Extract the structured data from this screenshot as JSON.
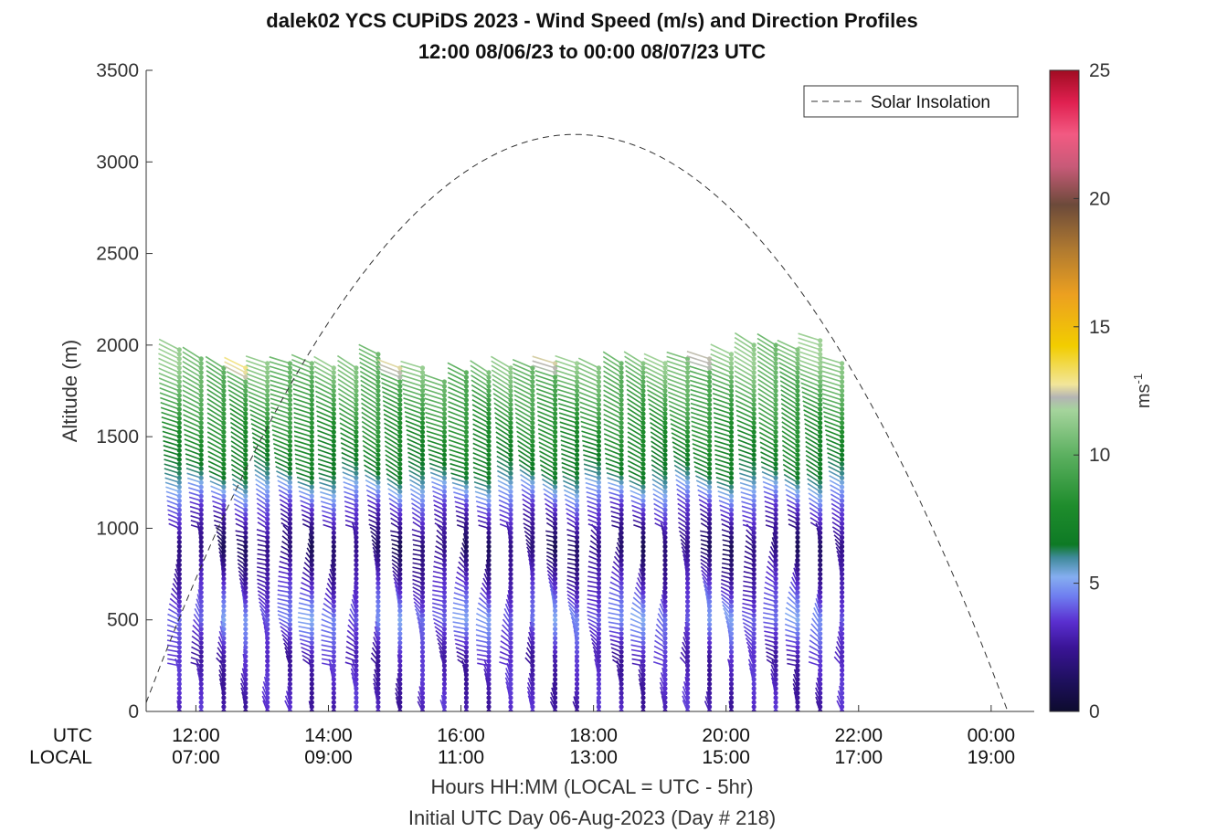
{
  "chart_data": {
    "type": "wind-barb-profile",
    "title": "dalek02 YCS CUPiDS 2023 - Wind Speed (m/s) and Direction Profiles",
    "subtitle": "12:00 08/06/23 to 00:00 08/07/23  UTC",
    "ylabel": "Altitude (m)",
    "xlabel": "Hours HH:MM  (LOCAL = UTC - 5hr)",
    "xlabel2": "Initial UTC Day 06-Aug-2023 (Day # 218)",
    "ylim": [
      0,
      3500
    ],
    "y_ticks": [
      "0",
      "500",
      "1000",
      "1500",
      "2000",
      "2500",
      "3000",
      "3500"
    ],
    "x_row_labels": {
      "utc": "UTC",
      "local": "LOCAL"
    },
    "x_ticks": [
      {
        "hour": 12,
        "utc": "12:00",
        "local": "07:00"
      },
      {
        "hour": 14,
        "utc": "14:00",
        "local": "09:00"
      },
      {
        "hour": 16,
        "utc": "16:00",
        "local": "11:00"
      },
      {
        "hour": 18,
        "utc": "18:00",
        "local": "13:00"
      },
      {
        "hour": 20,
        "utc": "20:00",
        "local": "15:00"
      },
      {
        "hour": 22,
        "utc": "22:00",
        "local": "17:00"
      },
      {
        "hour": 24,
        "utc": "00:00",
        "local": "19:00"
      }
    ],
    "xlim_hours": [
      11.25,
      24.65
    ],
    "legend": {
      "label": "Solar Insolation",
      "placement": "top-right",
      "style": "dashed black"
    },
    "solar_curve": {
      "sunrise_hour": 11.2,
      "sunset_hour": 24.25,
      "peak_altitude": 3150
    },
    "colorbar": {
      "label": "ms",
      "label_exponent": "-1",
      "range": [
        0,
        25
      ],
      "ticks": [
        "0",
        "5",
        "10",
        "15",
        "20",
        "25"
      ]
    },
    "profile_times_hours": [
      11.75,
      12.08,
      12.42,
      12.75,
      13.08,
      13.42,
      13.75,
      14.08,
      14.42,
      14.75,
      15.08,
      15.42,
      15.75,
      16.08,
      16.42,
      16.75,
      17.08,
      17.42,
      17.75,
      18.08,
      18.42,
      18.75,
      19.08,
      19.42,
      19.75,
      20.08,
      20.42,
      20.75,
      21.08,
      21.42,
      21.75
    ],
    "profile_top_m": [
      1975,
      1925,
      1875,
      1875,
      1900,
      1900,
      1900,
      1875,
      1875,
      1950,
      1875,
      1875,
      1800,
      1850,
      1850,
      1875,
      1875,
      1900,
      1900,
      1875,
      1900,
      1900,
      1900,
      1925,
      1925,
      1950,
      2000,
      2000,
      1975,
      2025,
      1900
    ],
    "altitude_step_m": 25,
    "speed_profile_samples": [
      {
        "alt_m": 0,
        "speed_ms": 3.0
      },
      {
        "alt_m": 300,
        "speed_ms": 3.0
      },
      {
        "alt_m": 500,
        "speed_ms": 4.5
      },
      {
        "alt_m": 700,
        "speed_ms": 3.0
      },
      {
        "alt_m": 900,
        "speed_ms": 1.5
      },
      {
        "alt_m": 1100,
        "speed_ms": 3.5
      },
      {
        "alt_m": 1300,
        "speed_ms": 6.5
      },
      {
        "alt_m": 1500,
        "speed_ms": 8.0
      },
      {
        "alt_m": 1700,
        "speed_ms": 9.5
      },
      {
        "alt_m": 1900,
        "speed_ms": 11.0
      }
    ]
  }
}
